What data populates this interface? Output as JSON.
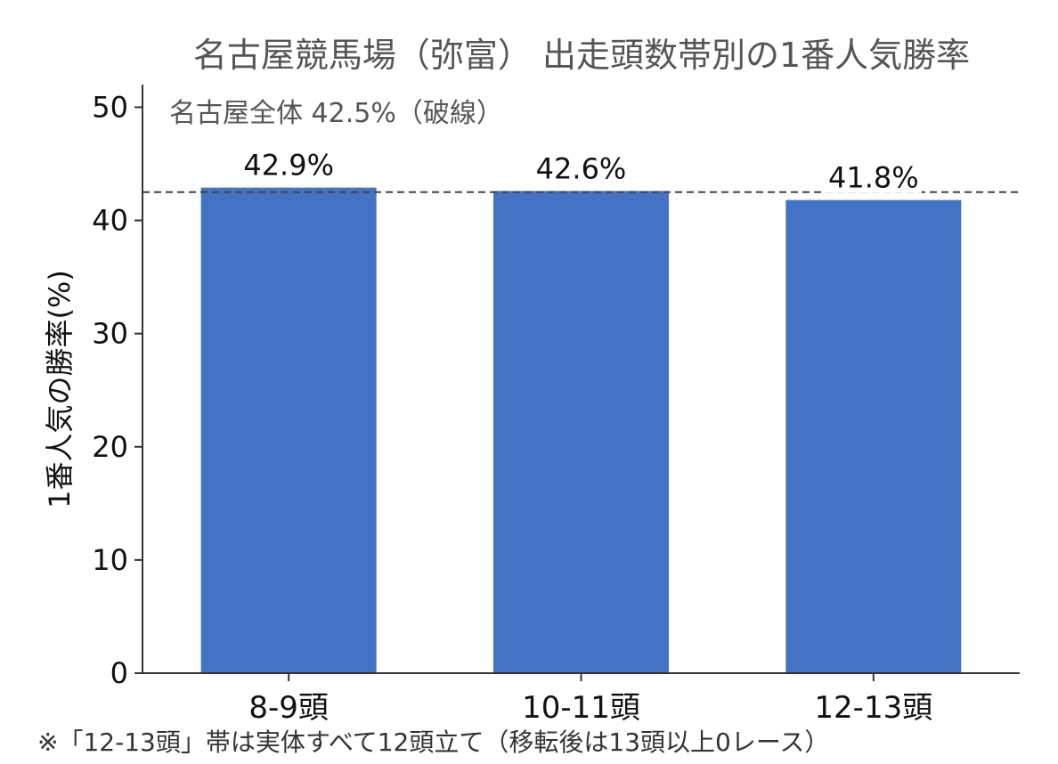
{
  "chart_data": {
    "type": "bar",
    "title": "名古屋競馬場（弥富） 出走頭数帯別の1番人気勝率",
    "ylabel": "1番人気の勝率(%)",
    "xlabel": "",
    "categories": [
      "8-9頭",
      "10-11頭",
      "12-13頭"
    ],
    "values": [
      42.9,
      42.6,
      41.8
    ],
    "data_labels": [
      "42.9%",
      "42.6%",
      "41.8%"
    ],
    "ylim": [
      0,
      52
    ],
    "yticks": [
      0,
      10,
      20,
      30,
      40,
      50
    ],
    "reference_line": {
      "value": 42.5,
      "style": "dashed",
      "label": "名古屋全体 42.5%（破線）"
    },
    "grid": false,
    "footnote": "※「12-13頭」帯は実体すべて12頭立て（移転後は13頭以上0レース）",
    "colors": {
      "bar": "#4472c4",
      "reference": "#444444",
      "axis": "#333333"
    }
  }
}
